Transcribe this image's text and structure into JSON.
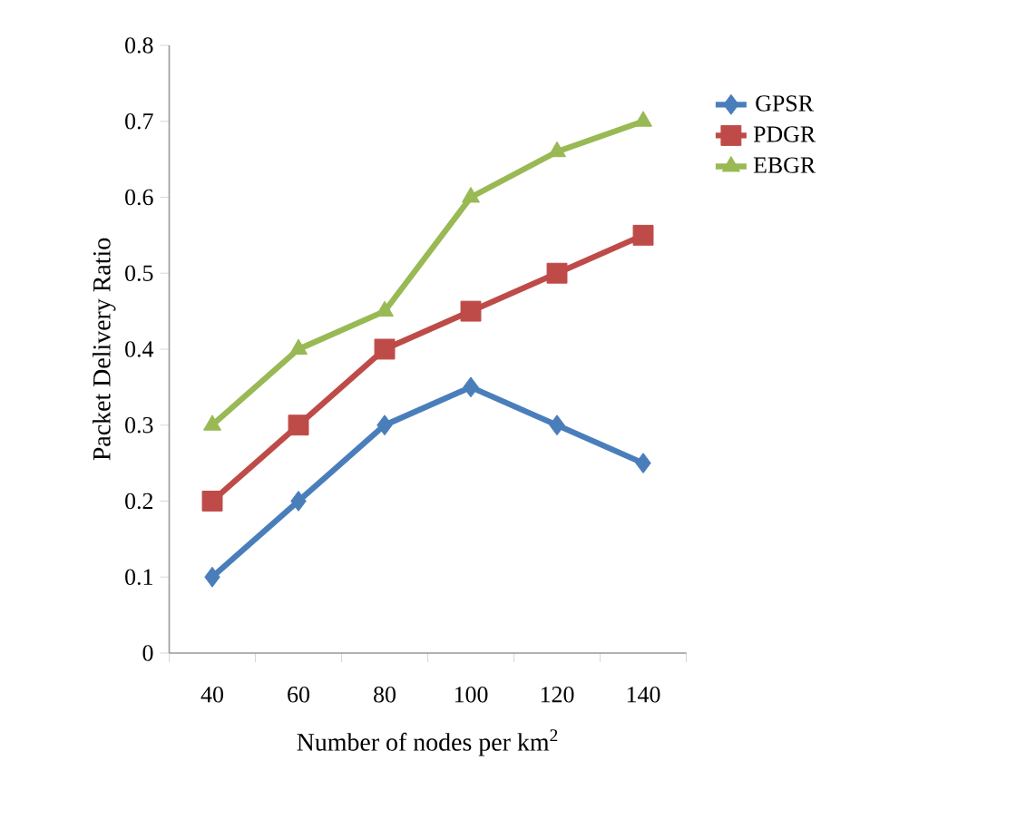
{
  "chart_data": {
    "type": "line",
    "xlabel": "Number of nodes per km$^{2}$",
    "ylabel": "Packet Delivery Ratio",
    "categories": [
      "40",
      "60",
      "80",
      "100",
      "120",
      "140"
    ],
    "ylim": [
      0,
      0.8
    ],
    "yticks": [
      0,
      0.1,
      0.2,
      0.3,
      0.4,
      0.5,
      0.6,
      0.7,
      0.8
    ],
    "grid": false,
    "legend": "right",
    "line_style": "solid",
    "series": [
      {
        "name": "GPSR",
        "color": "#4a7ebb",
        "marker": "diamond",
        "values": [
          0.1,
          0.2,
          0.3,
          0.35,
          0.3,
          0.25
        ]
      },
      {
        "name": "PDGR",
        "color": "#be4b48",
        "marker": "square",
        "values": [
          0.2,
          0.3,
          0.4,
          0.45,
          0.5,
          0.55
        ]
      },
      {
        "name": "EBGR",
        "color": "#98b954",
        "marker": "triangle",
        "values": [
          0.3,
          0.4,
          0.45,
          0.6,
          0.66,
          0.7
        ]
      }
    ]
  }
}
